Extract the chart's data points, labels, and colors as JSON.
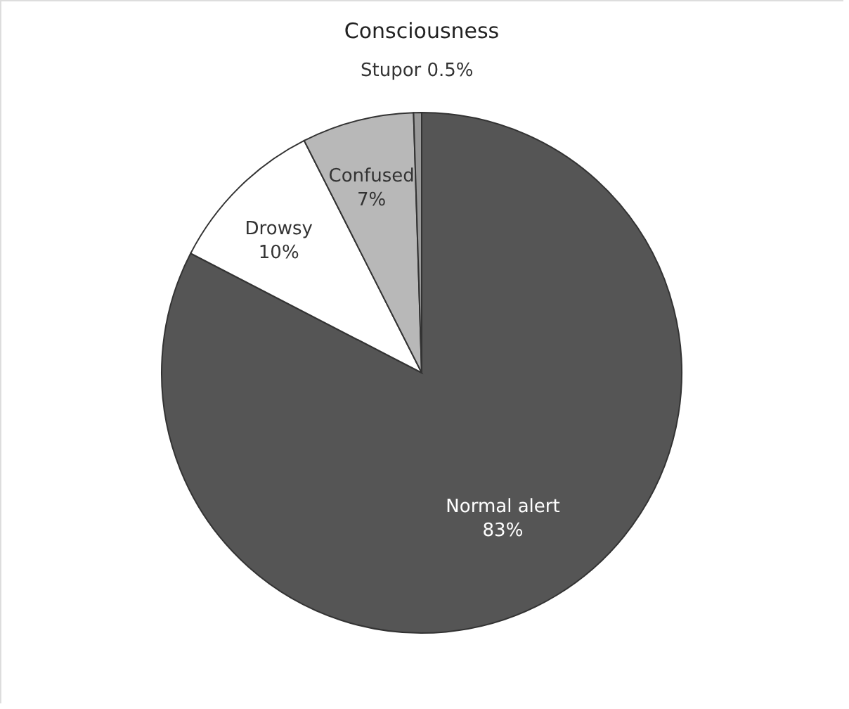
{
  "chart_data": {
    "type": "pie",
    "title": "Consciousness",
    "categories": [
      "Normal alert",
      "Drowsy",
      "Confused",
      "Stupor"
    ],
    "values": [
      83,
      10,
      7,
      0.5
    ],
    "value_labels": [
      "83%",
      "10%",
      "7%",
      "0.5%"
    ],
    "colors": [
      "#555555",
      "#ffffff",
      "#b8b8b8",
      "#999999"
    ],
    "legend": false
  }
}
